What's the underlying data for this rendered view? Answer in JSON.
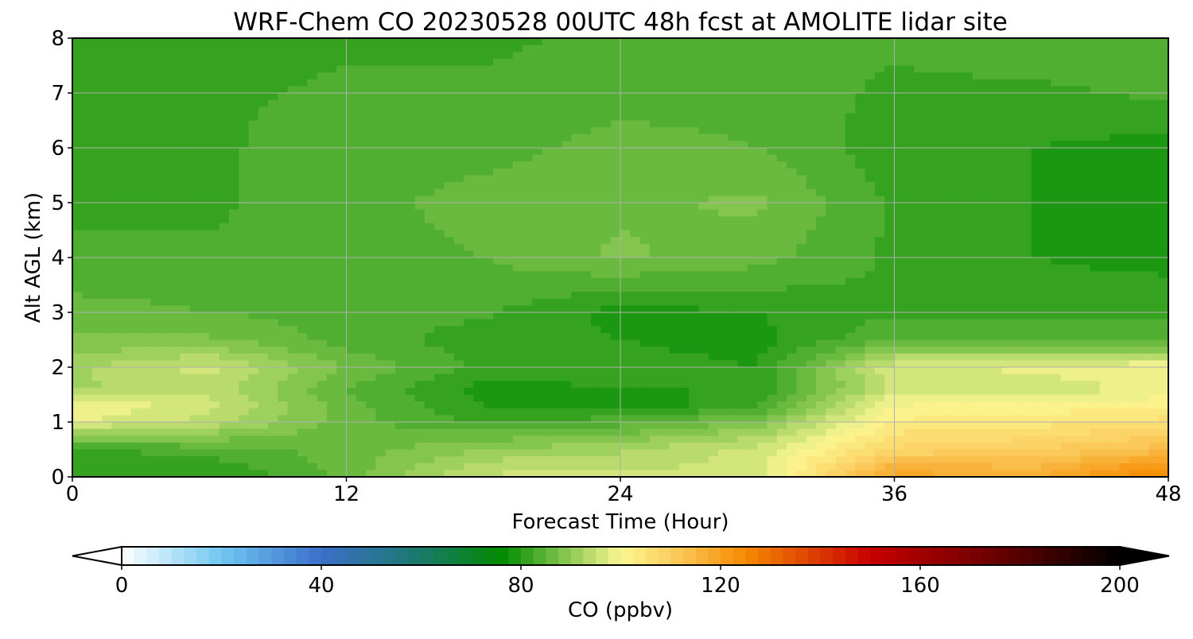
{
  "chart_data": {
    "type": "heatmap",
    "title": "WRF-Chem CO  20230528 00UTC 48h fcst at AMOLITE lidar site",
    "xlabel": "Forecast Time (Hour)",
    "ylabel": "Alt AGL (km)",
    "xlim": [
      0,
      48
    ],
    "ylim": [
      0,
      8
    ],
    "x_ticks": [
      0,
      12,
      24,
      36,
      48
    ],
    "y_ticks": [
      0,
      1,
      2,
      3,
      4,
      5,
      6,
      7,
      8
    ],
    "grid": true,
    "x": [
      0,
      6,
      12,
      18,
      24,
      30,
      36,
      42,
      48
    ],
    "y": [
      0.1,
      0.5,
      1.0,
      1.3,
      1.6,
      2.0,
      2.5,
      3.0,
      4.0,
      5.0,
      6.0,
      7.0,
      8.0
    ],
    "z": [
      [
        80,
        80,
        86,
        95,
        95,
        96,
        118,
        116,
        125
      ],
      [
        82,
        84,
        86,
        90,
        92,
        96,
        108,
        110,
        114
      ],
      [
        98,
        94,
        86,
        82,
        84,
        88,
        103,
        104,
        106
      ],
      [
        100,
        96,
        86,
        80,
        78,
        82,
        100,
        101,
        102
      ],
      [
        92,
        94,
        85,
        79,
        80,
        80,
        96,
        96,
        98
      ],
      [
        92,
        96,
        87,
        82,
        81,
        80,
        97,
        98,
        100
      ],
      [
        88,
        88,
        84,
        81,
        80,
        79,
        85,
        84,
        84
      ],
      [
        86,
        85,
        84,
        83,
        79,
        80,
        82,
        82,
        82
      ],
      [
        83,
        83,
        84,
        85,
        88,
        86,
        82,
        80,
        79
      ],
      [
        82,
        82,
        84,
        86,
        87,
        88,
        82,
        80,
        78
      ],
      [
        81,
        82,
        84,
        84,
        86,
        85,
        81,
        80,
        79
      ],
      [
        81,
        82,
        83,
        83,
        84,
        84,
        82,
        82,
        83
      ],
      [
        81,
        81,
        82,
        82,
        83,
        83,
        83,
        84,
        84
      ]
    ],
    "colorbar": {
      "label": "CO  (ppbv)",
      "vmin": 0,
      "vmax": 200,
      "ticks": [
        0,
        40,
        80,
        120,
        160,
        200
      ],
      "extend": "both",
      "stops": [
        [
          0,
          "#ffffff"
        ],
        [
          20,
          "#6fc6f2"
        ],
        [
          40,
          "#3b6fc9"
        ],
        [
          60,
          "#1a7a6a"
        ],
        [
          76,
          "#008a00"
        ],
        [
          88,
          "#7cc24a"
        ],
        [
          100,
          "#fbf792"
        ],
        [
          112,
          "#fbc655"
        ],
        [
          125,
          "#f58a00"
        ],
        [
          150,
          "#c80000"
        ],
        [
          175,
          "#6a0000"
        ],
        [
          200,
          "#000000"
        ]
      ]
    }
  }
}
